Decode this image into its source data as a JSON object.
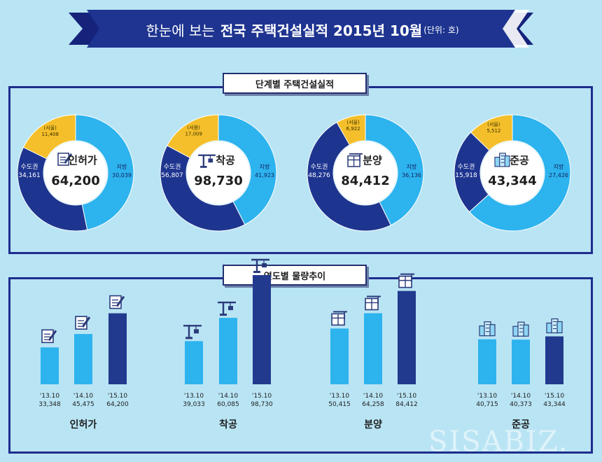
{
  "banner": {
    "title_light": "한눈에 보는",
    "title_bold": "전국 주택건설실적 2015년 10월",
    "unit": "(단위: 호)"
  },
  "sections": {
    "stages_title": "단계별 주택건설실적",
    "trend_title": "연도별 물량추이"
  },
  "colors": {
    "background": "#b9e4f4",
    "banner": "#1e3490",
    "metro": "#1e3590",
    "local": "#2db3ee",
    "seoul": "#f4bf2a",
    "bar_past": "#2db3ee",
    "bar_current": "#213a8e"
  },
  "chart_data": [
    {
      "type": "pie",
      "title": "인허가",
      "icon": "permit-document-icon",
      "total": "64,200",
      "labels": [
        "수도권",
        "지방",
        "(서울)"
      ],
      "values": [
        34161,
        30039,
        11408
      ],
      "value_labels": [
        "34,161",
        "30,039",
        "11,408"
      ],
      "note": "(서울) is a subset of 수도권"
    },
    {
      "type": "pie",
      "title": "착공",
      "icon": "crane-icon",
      "total": "98,730",
      "labels": [
        "수도권",
        "지방",
        "(서울)"
      ],
      "values": [
        56807,
        41923,
        17009
      ],
      "value_labels": [
        "56,807",
        "41,923",
        "17,009"
      ]
    },
    {
      "type": "pie",
      "title": "분양",
      "icon": "construction-site-icon",
      "total": "84,412",
      "labels": [
        "수도권",
        "지방",
        "(서울)"
      ],
      "values": [
        48276,
        36136,
        6922
      ],
      "value_labels": [
        "48,276",
        "36,136",
        "6,922"
      ]
    },
    {
      "type": "pie",
      "title": "준공",
      "icon": "buildings-icon",
      "total": "43,344",
      "labels": [
        "수도권",
        "지방",
        "(서울)"
      ],
      "values": [
        15918,
        27426,
        5512
      ],
      "value_labels": [
        "15,918",
        "27,426",
        "5,512"
      ]
    },
    {
      "type": "bar",
      "title": "인허가",
      "icon": "permit-document-icon",
      "categories": [
        "'13.10",
        "'14.10",
        "'15.10"
      ],
      "values": [
        33348,
        45475,
        64200
      ],
      "value_labels": [
        "33,348",
        "45,475",
        "64,200"
      ]
    },
    {
      "type": "bar",
      "title": "착공",
      "icon": "crane-icon",
      "categories": [
        "'13.10",
        "'14.10",
        "'15.10"
      ],
      "values": [
        39033,
        60085,
        98730
      ],
      "value_labels": [
        "39,033",
        "60,085",
        "98,730"
      ]
    },
    {
      "type": "bar",
      "title": "분양",
      "icon": "construction-site-icon",
      "categories": [
        "'13.10",
        "'14.10",
        "'15.10"
      ],
      "values": [
        50415,
        64258,
        84412
      ],
      "value_labels": [
        "50,415",
        "64,258",
        "84,412"
      ]
    },
    {
      "type": "bar",
      "title": "준공",
      "icon": "buildings-icon",
      "categories": [
        "'13.10",
        "'14.10",
        "'15.10"
      ],
      "values": [
        40715,
        40373,
        43344
      ],
      "value_labels": [
        "40,715",
        "40,373",
        "43,344"
      ]
    }
  ],
  "watermark": "SISABIZ."
}
